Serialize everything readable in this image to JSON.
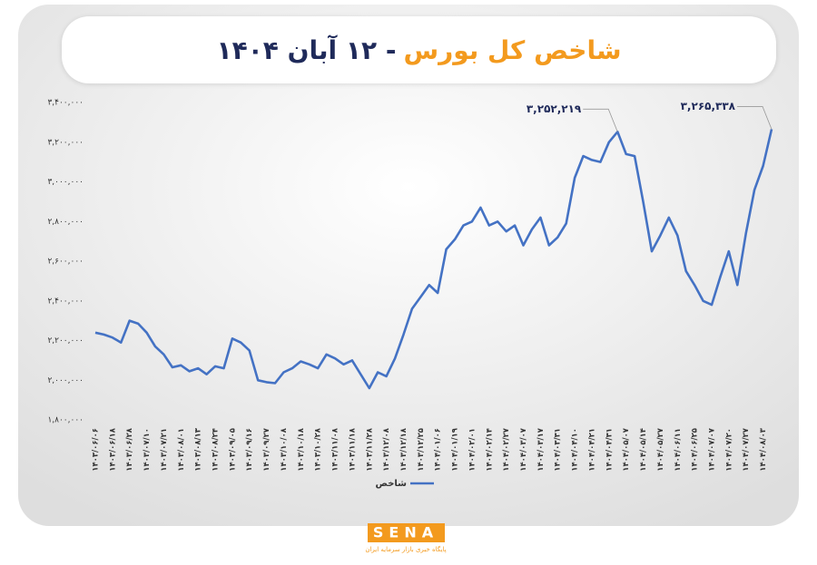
{
  "chart_data": {
    "type": "line",
    "title": "شاخص کل بورس",
    "subtitle": "- ۱۲ آبان ۱۴۰۴",
    "ylim": [
      1800000,
      3400000
    ],
    "yticks": [
      {
        "value": 1800000,
        "label": "۱,۸۰۰,۰۰۰"
      },
      {
        "value": 2000000,
        "label": "۲,۰۰۰,۰۰۰"
      },
      {
        "value": 2200000,
        "label": "۲,۲۰۰,۰۰۰"
      },
      {
        "value": 2400000,
        "label": "۲,۴۰۰,۰۰۰"
      },
      {
        "value": 2600000,
        "label": "۲,۶۰۰,۰۰۰"
      },
      {
        "value": 2800000,
        "label": "۲,۸۰۰,۰۰۰"
      },
      {
        "value": 3000000,
        "label": "۳,۰۰۰,۰۰۰"
      },
      {
        "value": 3200000,
        "label": "۳,۲۰۰,۰۰۰"
      },
      {
        "value": 3400000,
        "label": "۳,۴۰۰,۰۰۰"
      }
    ],
    "categories": [
      "۱۴۰۳/۰۶/۰۶",
      null,
      "۱۴۰۳/۰۶/۱۸",
      null,
      "۱۴۰۳/۰۶/۲۸",
      null,
      "۱۴۰۳/۰۷/۱۰",
      null,
      "۱۴۰۳/۰۷/۲۱",
      null,
      "۱۴۰۳/۰۸/۰۱",
      null,
      "۱۴۰۳/۰۸/۱۳",
      null,
      "۱۴۰۳/۰۸/۲۴",
      null,
      "۱۴۰۳/۰۹/۰۵",
      null,
      "۱۴۰۳/۰۹/۱۶",
      null,
      "۱۴۰۳/۰۹/۲۷",
      null,
      "۱۴۰۳/۱۰/۰۸",
      null,
      "۱۴۰۳/۱۰/۱۸",
      null,
      "۱۴۰۳/۱۰/۲۸",
      null,
      "۱۴۰۳/۱۱/۰۸",
      null,
      "۱۴۰۳/۱۱/۱۸",
      null,
      "۱۴۰۳/۱۱/۲۸",
      null,
      "۱۴۰۳/۱۲/۰۸",
      null,
      "۱۴۰۳/۱۲/۱۸",
      null,
      "۱۴۰۳/۱۲/۲۵",
      null,
      "۱۴۰۴/۰۱/۰۶",
      null,
      "۱۴۰۴/۰۱/۱۹",
      null,
      "۱۴۰۴/۰۲/۰۱",
      null,
      "۱۴۰۴/۰۲/۱۴",
      null,
      "۱۴۰۴/۰۲/۲۷",
      null,
      "۱۴۰۴/۰۳/۰۷",
      null,
      "۱۴۰۴/۰۳/۱۷",
      null,
      "۱۴۰۴/۰۳/۳۱",
      null,
      "۱۴۰۴/۰۴/۱۰",
      null,
      "۱۴۰۴/۰۴/۲۱",
      null,
      "۱۴۰۴/۰۴/۳۱",
      null,
      "۱۴۰۴/۰۵/۰۷",
      null,
      "۱۴۰۴/۰۵/۱۴",
      null,
      "۱۴۰۴/۰۵/۲۷",
      null,
      "۱۴۰۴/۰۶/۱۱",
      null,
      "۱۴۰۴/۰۶/۲۵",
      null,
      "۱۴۰۴/۰۷/۰۷",
      null,
      "۱۴۰۴/۰۷/۲۰",
      null,
      "۱۴۰۴/۰۷/۲۷",
      null,
      "۱۴۰۴/۰۸/۰۳",
      null
    ],
    "series": [
      {
        "name": "شاخص",
        "color": "#4472c4",
        "values": [
          2240000,
          2230000,
          2215000,
          2190000,
          2300000,
          2285000,
          2240000,
          2170000,
          2130000,
          2065000,
          2075000,
          2045000,
          2060000,
          2030000,
          2070000,
          2060000,
          2210000,
          2190000,
          2150000,
          2000000,
          1990000,
          1985000,
          2040000,
          2060000,
          2095000,
          2080000,
          2060000,
          2130000,
          2110000,
          2080000,
          2100000,
          2030000,
          1960000,
          2040000,
          2020000,
          2110000,
          2230000,
          2360000,
          2420000,
          2480000,
          2440000,
          2660000,
          2710000,
          2780000,
          2800000,
          2870000,
          2780000,
          2800000,
          2750000,
          2780000,
          2680000,
          2760000,
          2820000,
          2680000,
          2720000,
          2790000,
          3020000,
          3130000,
          3110000,
          3100000,
          3200000,
          3252219,
          3140000,
          3130000,
          2900000,
          2650000,
          2730000,
          2820000,
          2730000,
          2550000,
          2480000,
          2400000,
          2380000,
          2520000,
          2650000,
          2480000,
          2740000,
          2960000,
          3080000,
          3265338
        ],
        "value_labels": [
          null,
          null,
          null,
          null,
          null,
          null,
          null,
          null,
          null,
          null,
          null,
          null,
          null,
          null,
          null,
          null,
          null,
          null,
          null,
          null,
          null,
          null,
          null,
          null,
          null,
          null,
          null,
          null,
          null,
          null,
          null,
          null,
          null,
          null,
          null,
          null,
          null,
          null,
          null,
          null,
          null,
          null,
          null,
          null,
          null,
          null,
          null,
          null,
          null,
          null,
          null,
          null,
          null,
          null,
          null,
          null,
          null,
          null,
          null,
          null,
          null,
          "۳,۲۵۲,۲۱۹",
          null,
          null,
          null,
          null,
          null,
          null,
          null,
          null,
          null,
          null,
          null,
          null,
          null,
          null,
          null,
          null,
          null,
          "۳,۲۶۵,۳۳۸"
        ]
      }
    ],
    "grid": false,
    "legend": "bottom",
    "source_logo": "SENA",
    "source_tagline": "پایگاه خبری بازار سرمایه ایران"
  }
}
